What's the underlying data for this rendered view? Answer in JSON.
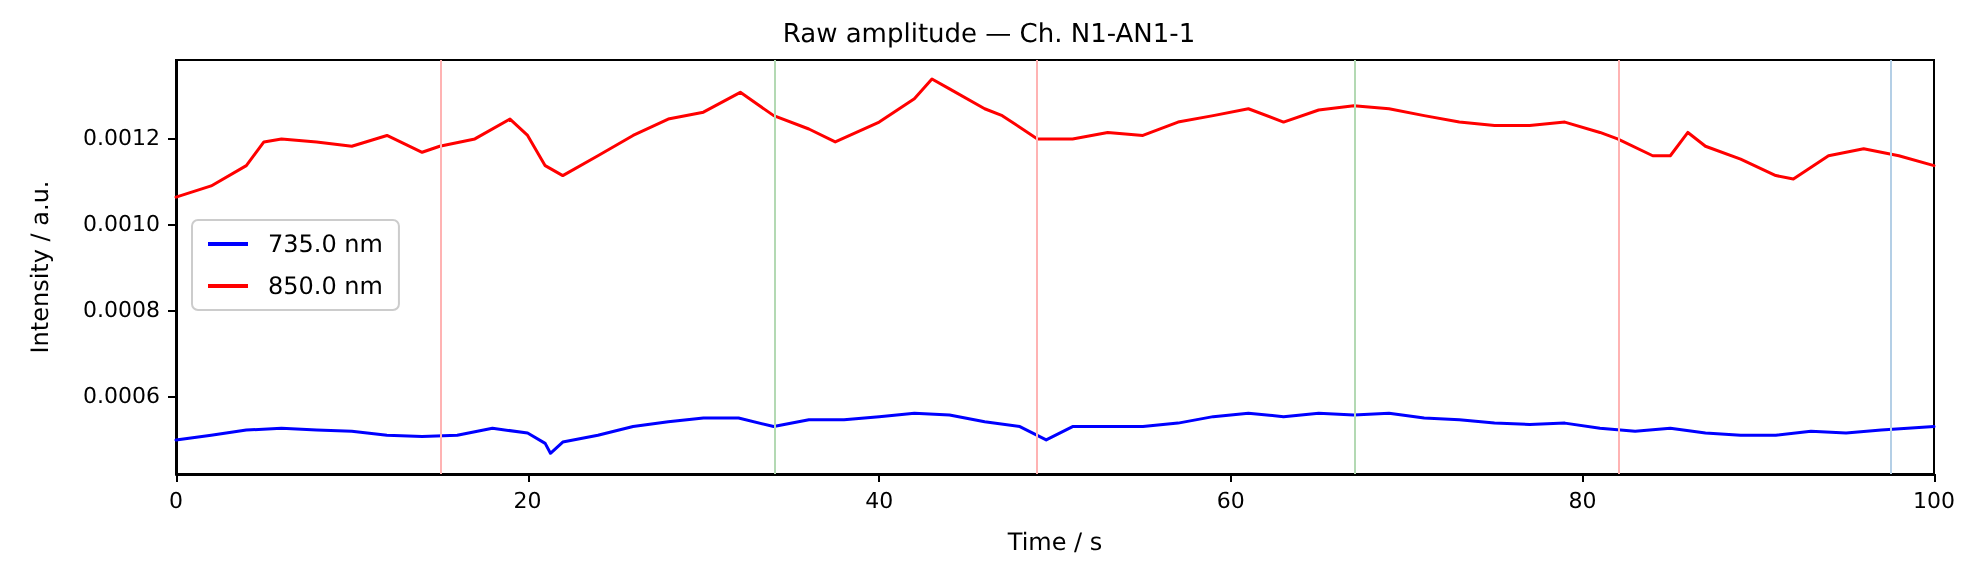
{
  "chart_data": {
    "type": "line",
    "title": "Raw amplitude — Ch. N1-AN1-1",
    "xlabel": "Time / s",
    "ylabel": "Intensity / a.u.",
    "xlim": [
      0,
      100
    ],
    "xticks": [
      0,
      20,
      40,
      60,
      80,
      100
    ],
    "ylim": [
      0.00042,
      0.00138
    ],
    "yticks": [
      0.0006,
      0.0008,
      {
        "value": 0.001,
        "label": "0.0010"
      },
      0.0012
    ],
    "grid": false,
    "legend": "left",
    "marker": "none",
    "line_style": "solid",
    "series": [
      {
        "name": "735.0 nm",
        "color": "#0000ff",
        "x": [
          0,
          2,
          4,
          6,
          8,
          10,
          12,
          14,
          16,
          18,
          20,
          21,
          21.3,
          22,
          24,
          26,
          28,
          30,
          32,
          34,
          36,
          38,
          40,
          42,
          44,
          46,
          48,
          49.5,
          51,
          53,
          55,
          57,
          59,
          61,
          63,
          65,
          67,
          69,
          71,
          73,
          75,
          77,
          79,
          81,
          83,
          85,
          87,
          89,
          91,
          93,
          95,
          97,
          100
        ],
        "values": [
          0.000499,
          0.00051,
          0.000522,
          0.000526,
          0.000522,
          0.000519,
          0.00051,
          0.000507,
          0.00051,
          0.000526,
          0.000515,
          0.000491,
          0.000468,
          0.000494,
          0.00051,
          0.00053,
          0.000541,
          0.00055,
          0.00055,
          0.00053,
          0.000546,
          0.000546,
          0.000553,
          0.000561,
          0.000557,
          0.000541,
          0.00053,
          0.000499,
          0.00053,
          0.00053,
          0.00053,
          0.000538,
          0.000553,
          0.000561,
          0.000553,
          0.000561,
          0.000557,
          0.000561,
          0.00055,
          0.000546,
          0.000538,
          0.000535,
          0.000538,
          0.000526,
          0.000519,
          0.000526,
          0.000515,
          0.00051,
          0.00051,
          0.000519,
          0.000515,
          0.000522,
          0.00053
        ]
      },
      {
        "name": "850.0 nm",
        "color": "#ff0000",
        "x": [
          0,
          2,
          4,
          5,
          6,
          8,
          10,
          12,
          14,
          15,
          17,
          19,
          20,
          21,
          22,
          24,
          26,
          28,
          30,
          32.1,
          34,
          36,
          37.5,
          40,
          42,
          43,
          44,
          46,
          47,
          49,
          51,
          53,
          55,
          57,
          59,
          61,
          63,
          65,
          67,
          69,
          71,
          73,
          75,
          77,
          79,
          81,
          82,
          84,
          85,
          86,
          87,
          89,
          91,
          92,
          94,
          96,
          98,
          100
        ],
        "values": [
          0.001062,
          0.001088,
          0.001135,
          0.00119,
          0.001197,
          0.00119,
          0.00118,
          0.001205,
          0.001166,
          0.00118,
          0.001197,
          0.001243,
          0.001205,
          0.001135,
          0.001112,
          0.001158,
          0.001205,
          0.001243,
          0.001259,
          0.001305,
          0.001251,
          0.00122,
          0.00119,
          0.001236,
          0.00129,
          0.001336,
          0.001313,
          0.001267,
          0.001251,
          0.001197,
          0.001197,
          0.001212,
          0.001205,
          0.001236,
          0.001251,
          0.001267,
          0.001236,
          0.001264,
          0.001274,
          0.001267,
          0.001251,
          0.001236,
          0.001228,
          0.001228,
          0.001236,
          0.001212,
          0.001197,
          0.001158,
          0.001158,
          0.001212,
          0.00118,
          0.00115,
          0.001112,
          0.001104,
          0.001158,
          0.001174,
          0.001158,
          0.001135
        ]
      }
    ],
    "ref_lines": [
      {
        "axis": "x",
        "value": 15,
        "color": "#ffb3b3"
      },
      {
        "axis": "x",
        "value": 34,
        "color": "#b3d9b3"
      },
      {
        "axis": "x",
        "value": 49,
        "color": "#ffb3b3"
      },
      {
        "axis": "x",
        "value": 67,
        "color": "#b3d9b3"
      },
      {
        "axis": "x",
        "value": 82,
        "color": "#ffb3b3"
      },
      {
        "axis": "x",
        "value": 97.5,
        "color": "#b4cfe6"
      }
    ]
  }
}
